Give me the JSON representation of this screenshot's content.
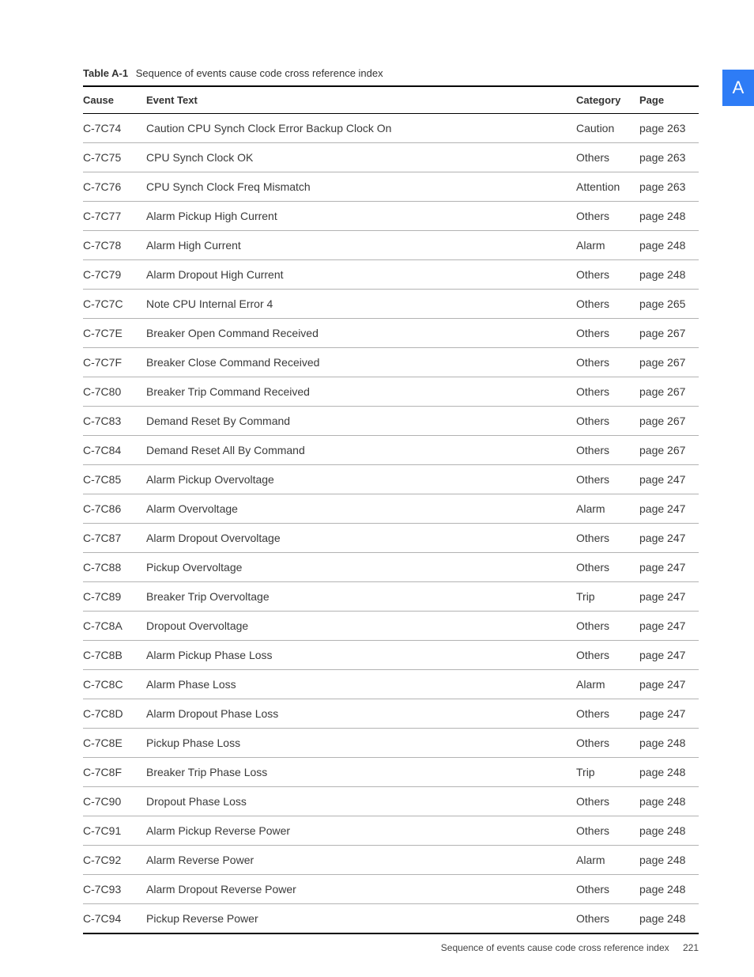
{
  "sideTab": "A",
  "caption": {
    "label": "Table A-1",
    "text": "Sequence of events cause code cross reference index"
  },
  "columns": [
    "Cause",
    "Event Text",
    "Category",
    "Page"
  ],
  "rows": [
    {
      "cause": "C-7C74",
      "event": "Caution CPU Synch Clock Error Backup Clock On",
      "category": "Caution",
      "page": "page 263"
    },
    {
      "cause": "C-7C75",
      "event": "CPU Synch Clock OK",
      "category": "Others",
      "page": "page 263"
    },
    {
      "cause": "C-7C76",
      "event": "CPU Synch Clock Freq Mismatch",
      "category": "Attention",
      "page": "page 263"
    },
    {
      "cause": "C-7C77",
      "event": "Alarm Pickup High Current",
      "category": "Others",
      "page": "page 248"
    },
    {
      "cause": "C-7C78",
      "event": "Alarm High Current",
      "category": "Alarm",
      "page": "page 248"
    },
    {
      "cause": "C-7C79",
      "event": "Alarm Dropout High Current",
      "category": "Others",
      "page": "page 248"
    },
    {
      "cause": "C-7C7C",
      "event": "Note CPU Internal Error 4",
      "category": "Others",
      "page": "page 265"
    },
    {
      "cause": "C-7C7E",
      "event": "Breaker Open Command Received",
      "category": "Others",
      "page": "page 267"
    },
    {
      "cause": "C-7C7F",
      "event": "Breaker Close Command Received",
      "category": "Others",
      "page": "page 267"
    },
    {
      "cause": "C-7C80",
      "event": "Breaker Trip Command Received",
      "category": "Others",
      "page": "page 267"
    },
    {
      "cause": "C-7C83",
      "event": "Demand Reset By Command",
      "category": "Others",
      "page": "page 267"
    },
    {
      "cause": "C-7C84",
      "event": "Demand Reset All By Command",
      "category": "Others",
      "page": "page 267"
    },
    {
      "cause": "C-7C85",
      "event": "Alarm Pickup Overvoltage",
      "category": "Others",
      "page": "page 247"
    },
    {
      "cause": "C-7C86",
      "event": "Alarm Overvoltage",
      "category": "Alarm",
      "page": "page 247"
    },
    {
      "cause": "C-7C87",
      "event": "Alarm Dropout Overvoltage",
      "category": "Others",
      "page": "page 247"
    },
    {
      "cause": "C-7C88",
      "event": "Pickup Overvoltage",
      "category": "Others",
      "page": "page 247"
    },
    {
      "cause": "C-7C89",
      "event": "Breaker Trip Overvoltage",
      "category": "Trip",
      "page": "page 247"
    },
    {
      "cause": "C-7C8A",
      "event": "Dropout Overvoltage",
      "category": "Others",
      "page": "page 247"
    },
    {
      "cause": "C-7C8B",
      "event": "Alarm Pickup Phase Loss",
      "category": "Others",
      "page": "page 247"
    },
    {
      "cause": "C-7C8C",
      "event": "Alarm Phase Loss",
      "category": "Alarm",
      "page": "page 247"
    },
    {
      "cause": "C-7C8D",
      "event": "Alarm Dropout Phase Loss",
      "category": "Others",
      "page": "page 247"
    },
    {
      "cause": "C-7C8E",
      "event": "Pickup Phase Loss",
      "category": "Others",
      "page": "page 248"
    },
    {
      "cause": "C-7C8F",
      "event": "Breaker Trip Phase Loss",
      "category": "Trip",
      "page": "page 248"
    },
    {
      "cause": "C-7C90",
      "event": "Dropout Phase Loss",
      "category": "Others",
      "page": "page 248"
    },
    {
      "cause": "C-7C91",
      "event": "Alarm Pickup Reverse Power",
      "category": "Others",
      "page": "page 248"
    },
    {
      "cause": "C-7C92",
      "event": "Alarm Reverse Power",
      "category": "Alarm",
      "page": "page 248"
    },
    {
      "cause": "C-7C93",
      "event": "Alarm Dropout Reverse Power",
      "category": "Others",
      "page": "page 248"
    },
    {
      "cause": "C-7C94",
      "event": "Pickup Reverse Power",
      "category": "Others",
      "page": "page 248"
    }
  ],
  "footer": {
    "text": "Sequence of events cause code cross reference index",
    "page": "221"
  }
}
